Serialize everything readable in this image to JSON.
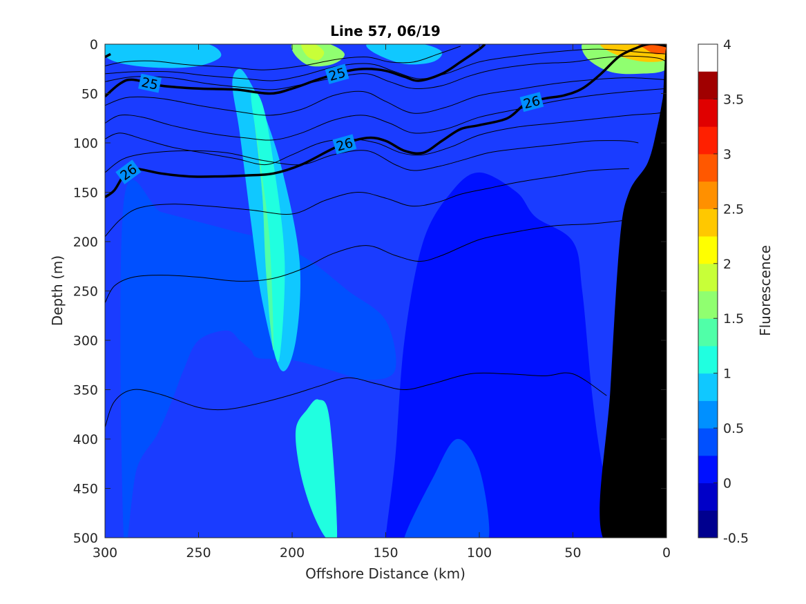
{
  "chart_data": {
    "type": "filled-contour",
    "title": "Line 57, 06/19",
    "xlabel": "Offshore Distance (km)",
    "ylabel": "Depth (m)",
    "colorbar_label": "Fluorescence",
    "xlim": [
      300,
      0
    ],
    "x_reversed": true,
    "ylim": [
      0,
      500
    ],
    "y_reversed": true,
    "x_ticks": [
      "300",
      "250",
      "200",
      "150",
      "100",
      "50",
      "0"
    ],
    "y_ticks": [
      "0",
      "50",
      "100",
      "150",
      "200",
      "250",
      "300",
      "350",
      "400",
      "450",
      "500"
    ],
    "colorbar_ticks": [
      "-0.5",
      "0",
      "0.5",
      "1",
      "1.5",
      "2",
      "2.5",
      "3",
      "3.5",
      "4"
    ],
    "colorbar_levels": [
      -0.5,
      -0.25,
      0,
      0.25,
      0.5,
      0.75,
      1,
      1.25,
      1.5,
      1.75,
      2,
      2.25,
      2.5,
      2.75,
      3,
      3.25,
      3.5,
      3.75,
      4
    ],
    "colorbar_colors": [
      "#00008f",
      "#0000c8",
      "#0010ff",
      "#0050ff",
      "#0090ff",
      "#10c8ff",
      "#20ffe0",
      "#50ffa8",
      "#90ff70",
      "#c8ff38",
      "#ffff00",
      "#ffc800",
      "#ff9000",
      "#ff5800",
      "#ff2000",
      "#e00000",
      "#a00000"
    ],
    "background_color": "#1a3cff",
    "seafloor_color": "#000000",
    "bold_contours": [
      {
        "label": "25",
        "x": [
          300,
          292,
          285,
          270,
          250,
          230,
          212,
          200,
          185,
          170,
          160,
          150,
          140,
          132,
          120,
          110,
          100,
          97
        ],
        "y": [
          53,
          40,
          36,
          42,
          45,
          46,
          50,
          45,
          35,
          27,
          25,
          27,
          33,
          37,
          30,
          18,
          5,
          0
        ]
      },
      {
        "label": "26",
        "x": [
          300,
          295,
          290,
          285,
          270,
          255,
          240,
          225,
          210,
          195,
          175,
          160,
          150,
          140,
          130,
          120,
          110,
          100,
          85,
          75,
          65,
          55,
          45,
          35,
          25,
          15,
          10,
          5,
          0
        ],
        "y": [
          155,
          148,
          133,
          126,
          131,
          134,
          134,
          133,
          131,
          122,
          103,
          95,
          98,
          108,
          110,
          98,
          86,
          82,
          75,
          60,
          55,
          52,
          45,
          30,
          12,
          3,
          0,
          0,
          2
        ]
      },
      {
        "label": "26",
        "x": [
          300,
          297
        ],
        "y": [
          13,
          10
        ]
      }
    ],
    "thin_contours": [
      {
        "x": [
          300,
          290,
          275,
          255,
          235,
          215,
          195,
          175,
          160,
          148,
          135,
          122,
          110
        ],
        "y": [
          22,
          18,
          17,
          21,
          23,
          26,
          22,
          15,
          13,
          18,
          18,
          10,
          2
        ]
      },
      {
        "x": [
          300,
          285,
          265,
          245,
          225,
          210,
          195,
          175,
          158,
          145,
          132,
          118,
          100,
          80,
          55,
          35,
          15,
          0
        ],
        "y": [
          30,
          28,
          28,
          32,
          35,
          37,
          32,
          22,
          20,
          28,
          35,
          30,
          18,
          12,
          7,
          5,
          8,
          10
        ]
      },
      {
        "x": [
          300,
          285,
          265,
          245,
          225,
          210,
          195,
          175,
          160,
          148,
          135,
          120,
          105,
          90,
          70,
          50,
          35,
          20,
          5,
          0
        ],
        "y": [
          38,
          33,
          34,
          40,
          44,
          46,
          41,
          33,
          30,
          38,
          45,
          42,
          32,
          25,
          20,
          18,
          14,
          12,
          14,
          18
        ]
      },
      {
        "x": [
          300,
          288,
          270,
          250,
          230,
          212,
          195,
          178,
          162,
          150,
          135,
          118,
          100,
          80,
          60,
          40,
          20,
          0
        ],
        "y": [
          62,
          54,
          55,
          62,
          68,
          72,
          66,
          52,
          48,
          58,
          70,
          64,
          52,
          46,
          40,
          36,
          34,
          36
        ]
      },
      {
        "x": [
          300,
          292,
          280,
          265,
          245,
          225,
          210,
          195,
          178,
          162,
          148,
          135,
          118,
          100,
          80,
          60,
          40,
          20,
          0
        ],
        "y": [
          80,
          72,
          74,
          82,
          90,
          95,
          97,
          90,
          77,
          72,
          80,
          90,
          86,
          74,
          66,
          58,
          52,
          48,
          45
        ]
      },
      {
        "x": [
          300,
          292,
          280,
          265,
          248,
          230,
          214,
          200,
          185,
          170,
          155,
          142,
          130,
          115,
          100,
          80,
          60,
          40,
          20,
          5,
          0
        ],
        "y": [
          96,
          90,
          96,
          104,
          110,
          116,
          122,
          112,
          100,
          96,
          100,
          110,
          112,
          104,
          92,
          84,
          80,
          76,
          72,
          70,
          68
        ]
      },
      {
        "x": [
          300,
          290,
          275,
          255,
          235,
          215,
          195,
          178,
          160,
          145,
          135,
          122,
          110,
          95,
          80,
          60,
          40,
          22,
          15
        ],
        "y": [
          130,
          116,
          110,
          108,
          110,
          118,
          122,
          112,
          108,
          122,
          128,
          124,
          118,
          110,
          106,
          102,
          98,
          98,
          100
        ]
      },
      {
        "x": [
          300,
          292,
          282,
          265,
          245,
          222,
          200,
          182,
          165,
          150,
          136,
          122,
          110,
          95,
          80,
          60,
          40,
          20
        ],
        "y": [
          195,
          178,
          166,
          162,
          164,
          168,
          172,
          158,
          150,
          156,
          164,
          160,
          152,
          146,
          140,
          134,
          128,
          126
        ]
      },
      {
        "x": [
          300,
          295,
          285,
          270,
          250,
          230,
          212,
          195,
          178,
          160,
          145,
          132,
          120,
          100,
          80,
          60,
          40,
          20
        ],
        "y": [
          262,
          245,
          236,
          234,
          236,
          240,
          238,
          228,
          212,
          204,
          214,
          220,
          214,
          198,
          190,
          184,
          182,
          178
        ]
      },
      {
        "x": [
          300,
          295,
          285,
          270,
          250,
          235,
          218,
          200,
          185,
          170,
          155,
          140,
          125,
          105,
          85,
          65,
          50,
          32
        ],
        "y": [
          388,
          362,
          350,
          355,
          368,
          370,
          364,
          355,
          346,
          338,
          344,
          350,
          344,
          334,
          334,
          336,
          334,
          356
        ]
      }
    ],
    "fluorescence_regions": [
      {
        "level": 0.25,
        "x": [
          290,
          283,
          272,
          264,
          258,
          250,
          235,
          228,
          222,
          218,
          200,
          180,
          160,
          145,
          150,
          170,
          190,
          210,
          230,
          250,
          270,
          290
        ],
        "y": [
          500,
          430,
          395,
          360,
          330,
          300,
          290,
          300,
          310,
          318,
          320,
          330,
          340,
          330,
          280,
          250,
          220,
          200,
          190,
          180,
          170,
          160
        ]
      },
      {
        "level": 0.75,
        "x": [
          232,
          228,
          222,
          216,
          206,
          198,
          196,
          205,
          215,
          222,
          228
        ],
        "y": [
          40,
          90,
          180,
          260,
          330,
          300,
          220,
          130,
          70,
          40,
          25
        ]
      },
      {
        "level": 1.0,
        "x": [
          222,
          218,
          214,
          212,
          207,
          204,
          210,
          216
        ],
        "y": [
          50,
          110,
          200,
          280,
          320,
          220,
          120,
          60
        ]
      },
      {
        "level": 1.0,
        "x": [
          198,
          192,
          186,
          180,
          176,
          182,
          190,
          196
        ],
        "y": [
          390,
          370,
          360,
          380,
          500,
          500,
          470,
          430
        ]
      },
      {
        "level": 1.25,
        "x": [
          220,
          216,
          214,
          210,
          212,
          217
        ],
        "y": [
          80,
          150,
          230,
          310,
          200,
          120
        ]
      },
      {
        "level": 1.5,
        "x": [
          200,
          190,
          180,
          172,
          178,
          190,
          198
        ],
        "y": [
          0,
          0,
          0,
          10,
          20,
          22,
          12
        ]
      },
      {
        "level": 1.75,
        "x": [
          195,
          188,
          183,
          186,
          192
        ],
        "y": [
          0,
          0,
          8,
          16,
          12
        ]
      },
      {
        "level": 1.5,
        "x": [
          45,
          35,
          20,
          5,
          0,
          0,
          15,
          30,
          42
        ],
        "y": [
          0,
          0,
          0,
          0,
          0,
          25,
          30,
          28,
          15
        ]
      },
      {
        "level": 2.25,
        "x": [
          35,
          25,
          15,
          5,
          0,
          0,
          10,
          22,
          32
        ],
        "y": [
          0,
          0,
          0,
          0,
          0,
          15,
          18,
          14,
          6
        ]
      },
      {
        "level": 2.75,
        "x": [
          15,
          8,
          2,
          0,
          0,
          6,
          12
        ],
        "y": [
          0,
          0,
          0,
          0,
          8,
          10,
          4
        ]
      },
      {
        "level": 0.75,
        "x": [
          160,
          145,
          130,
          120,
          125,
          140,
          155
        ],
        "y": [
          0,
          0,
          0,
          8,
          18,
          20,
          10
        ]
      },
      {
        "level": 0.75,
        "x": [
          300,
          285,
          265,
          245,
          238,
          250,
          270,
          290,
          300
        ],
        "y": [
          0,
          0,
          0,
          0,
          12,
          22,
          24,
          20,
          12
        ]
      },
      {
        "level": 0.0,
        "x": [
          150,
          145,
          140,
          130,
          115,
          100,
          80,
          70,
          50,
          45,
          40,
          35,
          30,
          34,
          48,
          68,
          90,
          110,
          130,
          148
        ],
        "y": [
          500,
          420,
          300,
          200,
          150,
          130,
          150,
          175,
          200,
          250,
          350,
          420,
          460,
          500,
          500,
          500,
          500,
          500,
          500,
          500
        ]
      },
      {
        "level": 0.25,
        "x": [
          140,
          125,
          112,
          100,
          95,
          108,
          120,
          132
        ],
        "y": [
          500,
          440,
          400,
          430,
          500,
          500,
          500,
          500
        ]
      }
    ],
    "seafloor": {
      "x": [
        34,
        30,
        25,
        20,
        10,
        5,
        2,
        0,
        0
      ],
      "y": [
        500,
        350,
        200,
        150,
        120,
        85,
        55,
        35,
        500
      ]
    }
  }
}
